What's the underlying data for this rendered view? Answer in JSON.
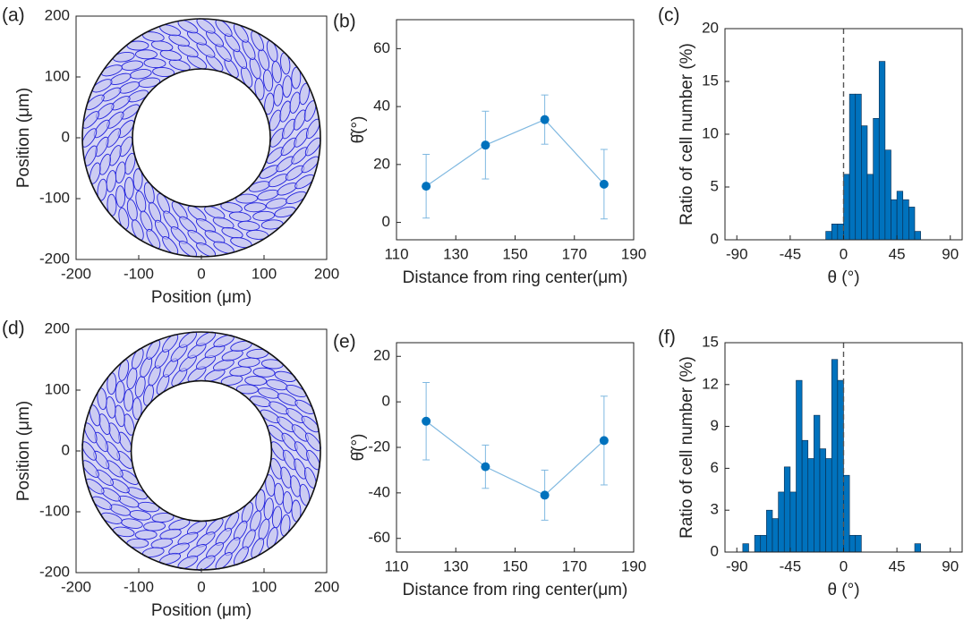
{
  "chart_data": [
    {
      "type": "ring",
      "label": "(a)",
      "xlabel": "Position (μm)",
      "ylabel": "Position (μm)",
      "xlim": [
        -200,
        200
      ],
      "ylim": [
        -200,
        200
      ],
      "xticks": [
        -200,
        -100,
        0,
        100,
        200
      ],
      "yticks": [
        -200,
        -100,
        0,
        100,
        200
      ],
      "circles": [
        110,
        190
      ],
      "color": "#2222dd"
    },
    {
      "type": "errorbar",
      "label": "(b)",
      "xlabel": "Distance from ring center(μm)",
      "ylabel": "θ̂(°)",
      "x": [
        120,
        140,
        160,
        180
      ],
      "values": [
        12.5,
        26.7,
        35.5,
        13.2
      ],
      "errors": [
        11,
        11.7,
        8.5,
        12
      ],
      "xlim": [
        110,
        190
      ],
      "ylim": [
        -6,
        70
      ],
      "xticks": [
        110,
        130,
        150,
        170,
        190
      ],
      "yticks": [
        0,
        20,
        40,
        60
      ],
      "color": "#0072bd"
    },
    {
      "type": "histogram",
      "label": "(c)",
      "xlabel": "θ (°)",
      "ylabel": "Ratio of cell number (%)",
      "bins": [
        -15,
        -10,
        -5,
        0,
        5,
        10,
        15,
        20,
        25,
        30,
        35,
        40,
        45,
        50,
        55,
        60,
        65
      ],
      "values": [
        0.8,
        1.5,
        1.5,
        6.2,
        13.8,
        13.8,
        10.8,
        6.2,
        11.5,
        16.9,
        8.5,
        3.8,
        4.6,
        3.8,
        3.1,
        0.8
      ],
      "xlim": [
        -100,
        100
      ],
      "ylim": [
        0,
        20
      ],
      "xticks": [
        -90,
        -45,
        0,
        45,
        90
      ],
      "yticks": [
        0,
        5,
        10,
        15,
        20
      ],
      "vline": 0,
      "color": "#0072bd"
    },
    {
      "type": "ring",
      "label": "(d)",
      "xlabel": "Position (μm)",
      "ylabel": "Position (μm)",
      "xlim": [
        -200,
        200
      ],
      "ylim": [
        -200,
        200
      ],
      "xticks": [
        -200,
        -100,
        0,
        100,
        200
      ],
      "yticks": [
        -200,
        -100,
        0,
        100,
        200
      ],
      "circles": [
        112,
        190
      ],
      "color": "#2222dd"
    },
    {
      "type": "errorbar",
      "label": "(e)",
      "xlabel": "Distance from ring center(μm)",
      "ylabel": "θ̂(°)",
      "x": [
        120,
        140,
        160,
        180
      ],
      "values": [
        -8.5,
        -28.5,
        -41,
        -17
      ],
      "errors": [
        17,
        9.5,
        11,
        19.5
      ],
      "xlim": [
        110,
        190
      ],
      "ylim": [
        -66,
        26
      ],
      "xticks": [
        110,
        130,
        150,
        170,
        190
      ],
      "yticks": [
        -60,
        -40,
        -20,
        0,
        20
      ],
      "color": "#0072bd"
    },
    {
      "type": "histogram",
      "label": "(f)",
      "xlabel": "θ (°)",
      "ylabel": "Ratio of cell number (%)",
      "bins": [
        -85,
        -80,
        -75,
        -70,
        -65,
        -60,
        -55,
        -50,
        -45,
        -40,
        -35,
        -30,
        -25,
        -20,
        -15,
        -10,
        -5,
        0,
        5,
        10,
        15,
        20,
        25,
        30,
        35,
        40,
        45,
        50,
        55,
        60,
        65
      ],
      "values": [
        0.6,
        0,
        1.2,
        1.2,
        3.0,
        2.4,
        4.3,
        6.1,
        4.3,
        12.3,
        8.0,
        6.7,
        9.8,
        7.4,
        6.7,
        13.8,
        12.3,
        5.5,
        1.2,
        1.2,
        0,
        0,
        0,
        0,
        0,
        0,
        0,
        0,
        0,
        0.6
      ],
      "xlim": [
        -100,
        100
      ],
      "ylim": [
        0,
        15
      ],
      "xticks": [
        -90,
        -45,
        0,
        45,
        90
      ],
      "yticks": [
        0,
        3,
        6,
        9,
        12,
        15
      ],
      "vline": 0,
      "color": "#0072bd"
    }
  ]
}
